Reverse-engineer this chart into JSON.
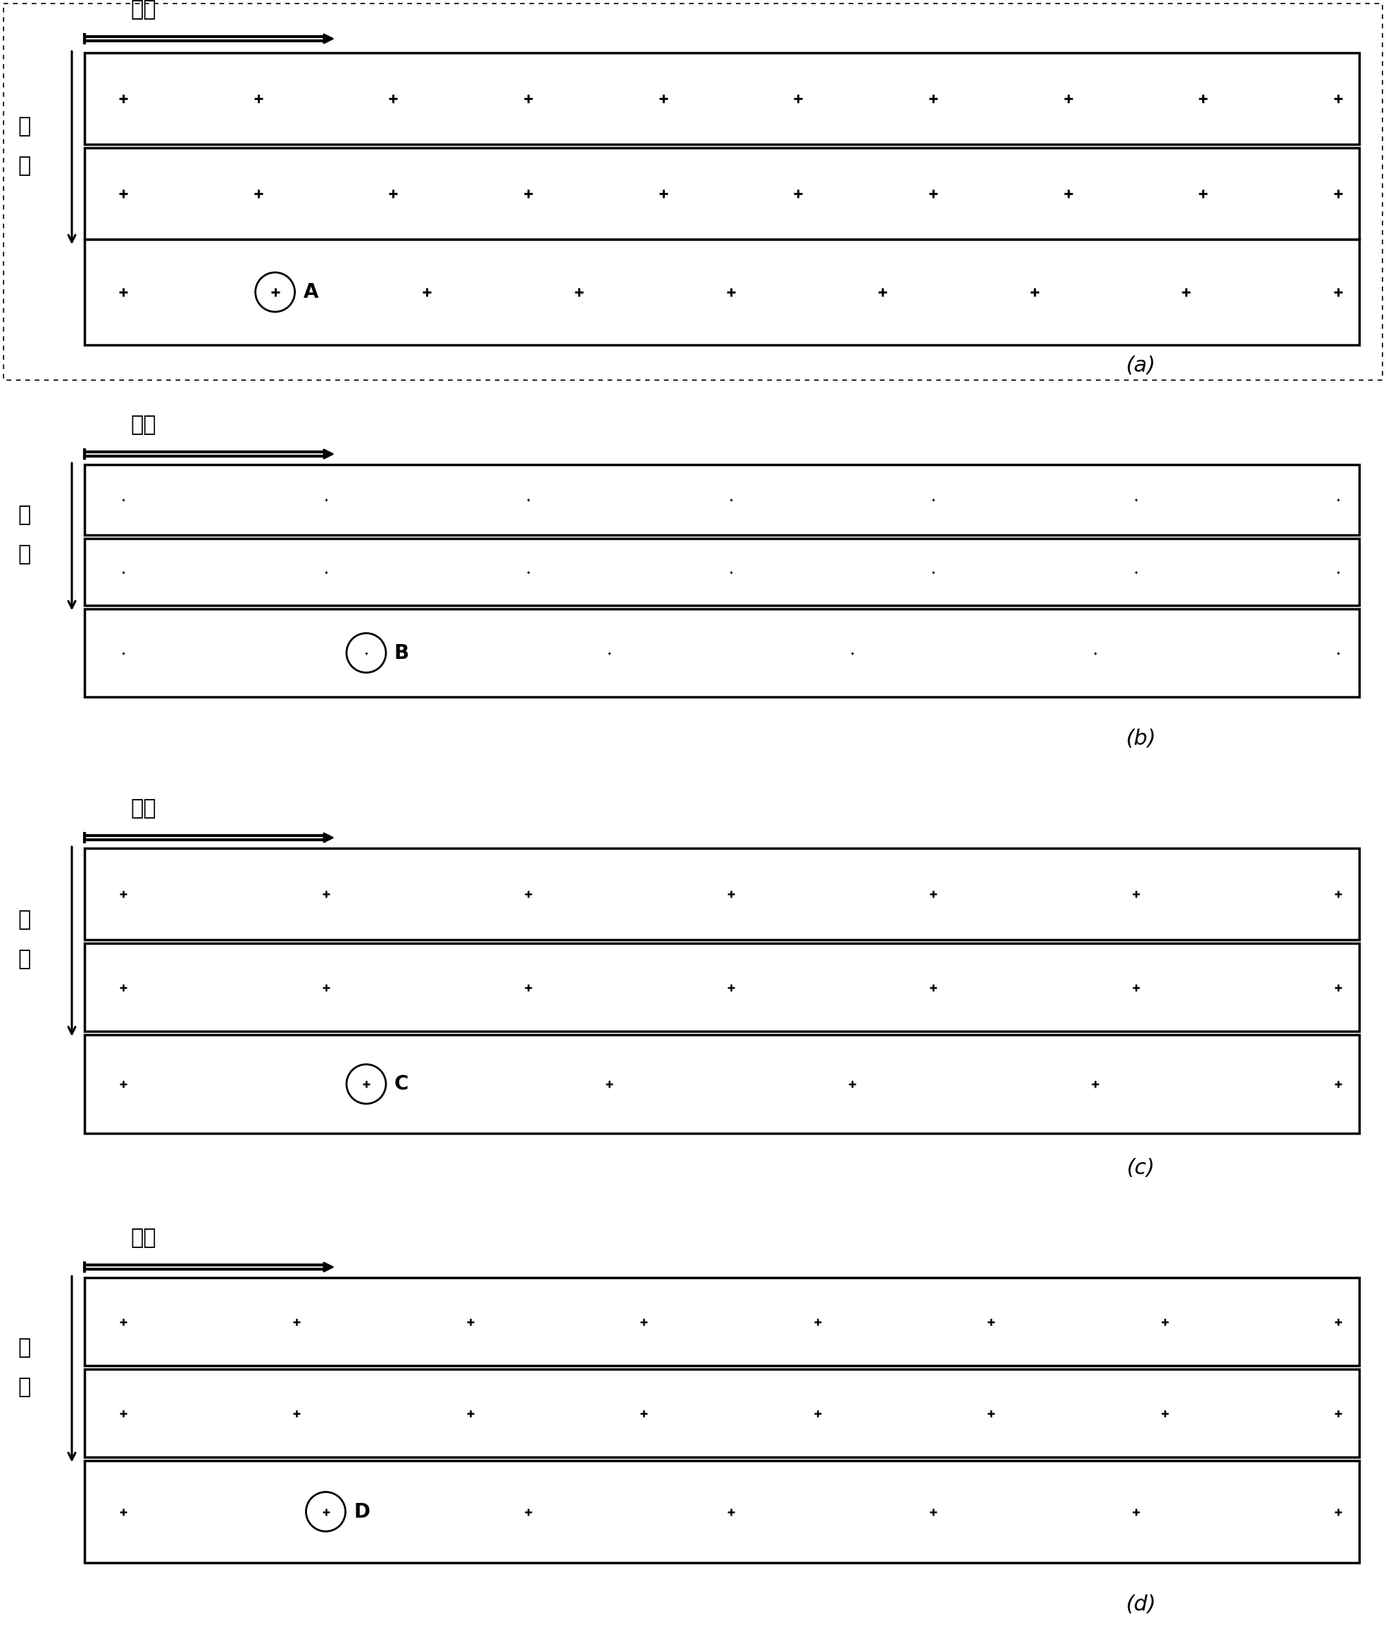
{
  "panels": [
    {
      "label": "(a)",
      "cross_label": "A",
      "n12": 10,
      "n3": 9,
      "ms12": 9,
      "ms3": 9,
      "mw": 2.2
    },
    {
      "label": "(b)",
      "cross_label": "B",
      "n12": 7,
      "n3": 6,
      "ms12": 3.5,
      "ms3": 3.5,
      "mw": 0.9
    },
    {
      "label": "(c)",
      "cross_label": "C",
      "n12": 7,
      "n3": 6,
      "ms12": 7,
      "ms3": 7,
      "mw": 1.8
    },
    {
      "label": "(d)",
      "cross_label": "D",
      "n12": 8,
      "n3": 7,
      "ms12": 7,
      "ms3": 7,
      "mw": 1.8
    }
  ],
  "fangwei_label": "方位",
  "juli_label": "距离",
  "background_color": "#ffffff"
}
